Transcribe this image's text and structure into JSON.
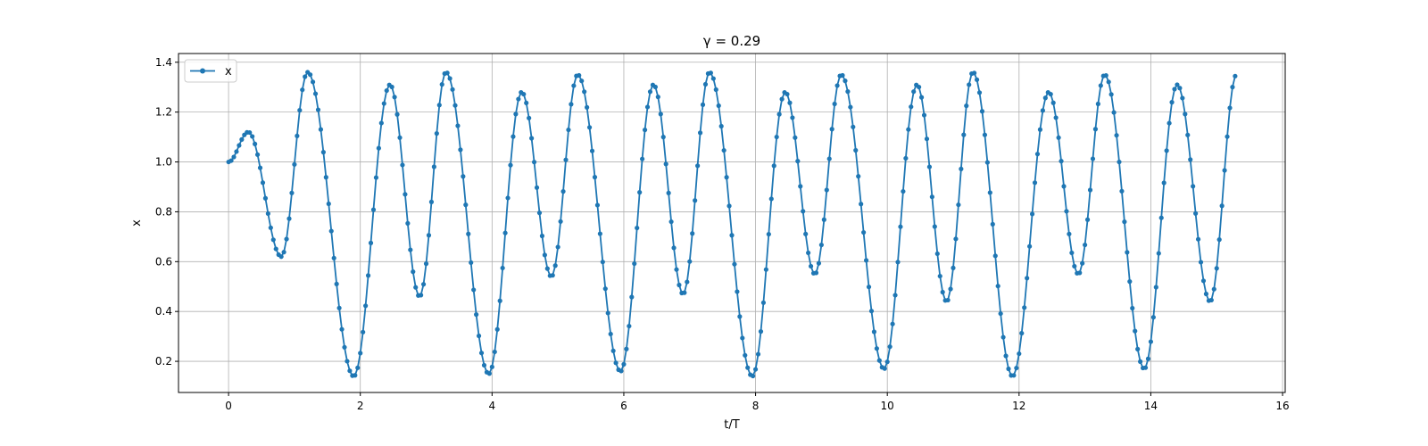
{
  "chart_data": {
    "type": "line",
    "title": "γ = 0.29",
    "xlabel": "t/T",
    "ylabel": "x",
    "xlim": [
      -0.76,
      16.04
    ],
    "ylim": [
      0.075,
      1.435
    ],
    "xticks": [
      0,
      2,
      4,
      6,
      8,
      10,
      12,
      14,
      16
    ],
    "yticks": [
      0.2,
      0.4,
      0.6,
      0.8,
      1.0,
      1.2,
      1.4
    ],
    "ytick_labels": [
      "0.2",
      "0.4",
      "0.6",
      "0.8",
      "1.0",
      "1.2",
      "1.4"
    ],
    "grid": true,
    "legend": {
      "position": "upper-left",
      "entries": [
        "x"
      ]
    },
    "series": [
      {
        "name": "x",
        "color": "#1f77b4",
        "marker": "circle",
        "keypoints": [
          [
            0.0,
            1.0
          ],
          [
            0.3,
            1.12
          ],
          [
            0.8,
            0.62
          ],
          [
            1.2,
            1.36
          ],
          [
            1.9,
            0.14
          ],
          [
            2.45,
            1.31
          ],
          [
            2.9,
            0.46
          ],
          [
            3.3,
            1.36
          ],
          [
            3.95,
            0.15
          ],
          [
            4.45,
            1.28
          ],
          [
            4.9,
            0.54
          ],
          [
            5.3,
            1.35
          ],
          [
            5.95,
            0.16
          ],
          [
            6.45,
            1.31
          ],
          [
            6.9,
            0.47
          ],
          [
            7.3,
            1.36
          ],
          [
            7.95,
            0.14
          ],
          [
            8.45,
            1.28
          ],
          [
            8.9,
            0.55
          ],
          [
            9.3,
            1.35
          ],
          [
            9.95,
            0.17
          ],
          [
            10.45,
            1.31
          ],
          [
            10.9,
            0.44
          ],
          [
            11.3,
            1.36
          ],
          [
            11.9,
            0.14
          ],
          [
            12.45,
            1.28
          ],
          [
            12.9,
            0.55
          ],
          [
            13.3,
            1.35
          ],
          [
            13.9,
            0.17
          ],
          [
            14.4,
            1.31
          ],
          [
            14.9,
            0.44
          ],
          [
            15.3,
            1.35
          ]
        ],
        "sample_step": 0.04
      }
    ]
  }
}
